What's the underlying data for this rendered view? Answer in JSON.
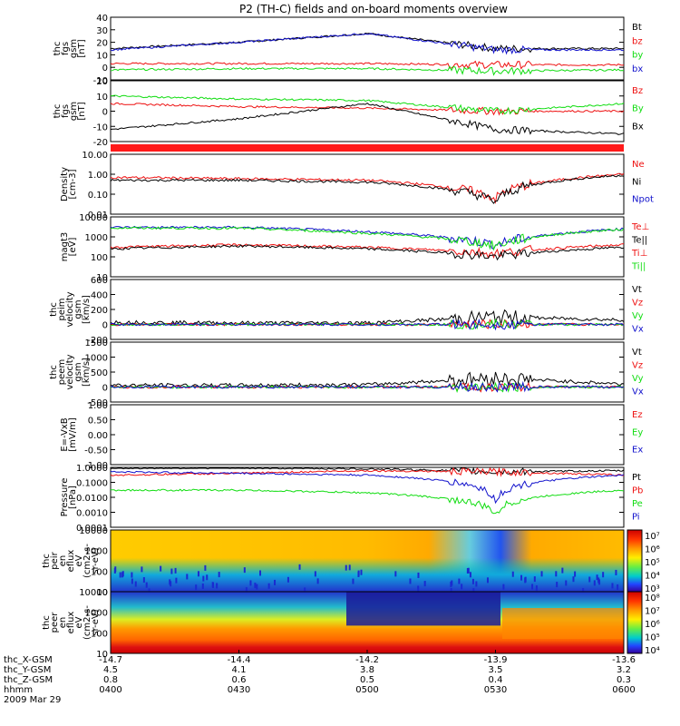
{
  "title": "P2 (TH-C) fields and on-board moments overview",
  "colors": {
    "black": "#000000",
    "red": "#ee1111",
    "green": "#11dd11",
    "blue": "#1111cc"
  },
  "panels": [
    {
      "id": "fgs-mag",
      "ylabel": [
        "thc",
        "fgs",
        "gsm",
        "[nT]"
      ],
      "ylim": [
        -10,
        40
      ],
      "ticks": [
        "40",
        "30",
        "20",
        "10",
        "0",
        "-10"
      ],
      "legend": [
        {
          "label": "Bt",
          "color": "black"
        },
        {
          "label": "bz",
          "color": "red"
        },
        {
          "label": "by",
          "color": "green"
        },
        {
          "label": "bx",
          "color": "blue"
        }
      ]
    },
    {
      "id": "fgs-comp",
      "ylabel": [
        "thc",
        "fgs",
        "gsm",
        "[nT]"
      ],
      "ylim": [
        -20,
        20
      ],
      "ticks": [
        "20",
        "10",
        "0",
        "-10",
        "-20"
      ],
      "legend": [
        {
          "label": "Bz",
          "color": "red"
        },
        {
          "label": "By",
          "color": "green"
        },
        {
          "label": "Bx",
          "color": "black"
        }
      ]
    },
    {
      "id": "density",
      "ylabel": [
        "Density",
        "[cm-3]"
      ],
      "ylim": [
        0.01,
        10
      ],
      "log": true,
      "ticks": [
        "10.00",
        "1.00",
        "0.10",
        "0.01"
      ],
      "legend": [
        {
          "label": "Ne",
          "color": "red"
        },
        {
          "label": "Ni",
          "color": "black"
        },
        {
          "label": "Npot",
          "color": "blue"
        }
      ]
    },
    {
      "id": "temp",
      "ylabel": [
        "magt3",
        "[eV]"
      ],
      "ylim": [
        10,
        10000
      ],
      "log": true,
      "ticks": [
        "10000",
        "1000",
        "100",
        "10"
      ],
      "legend": [
        {
          "label": "Te⊥",
          "color": "red"
        },
        {
          "label": "Te||",
          "color": "black"
        },
        {
          "label": "Ti⊥",
          "color": "red"
        },
        {
          "label": "Ti||",
          "color": "green"
        }
      ]
    },
    {
      "id": "vel-ion",
      "ylabel": [
        "thc",
        "peim",
        "velocity",
        "gsm",
        "[km/s]"
      ],
      "ylim": [
        -200,
        600
      ],
      "ticks": [
        "600",
        "400",
        "200",
        "0",
        "-200"
      ],
      "legend": [
        {
          "label": "Vt",
          "color": "black"
        },
        {
          "label": "Vz",
          "color": "red"
        },
        {
          "label": "Vy",
          "color": "green"
        },
        {
          "label": "Vx",
          "color": "blue"
        }
      ]
    },
    {
      "id": "vel-elec",
      "ylabel": [
        "thc",
        "peem",
        "velocity",
        "gsm",
        "[km/s]"
      ],
      "ylim": [
        -500,
        1500
      ],
      "ticks": [
        "1500",
        "1000",
        "500",
        "0",
        "-500"
      ],
      "legend": [
        {
          "label": "Vt",
          "color": "black"
        },
        {
          "label": "Vz",
          "color": "red"
        },
        {
          "label": "Vy",
          "color": "green"
        },
        {
          "label": "Vx",
          "color": "blue"
        }
      ]
    },
    {
      "id": "efield",
      "ylabel": [
        "E=-VxB",
        "[mV/m]"
      ],
      "ylim": [
        -1,
        1
      ],
      "ticks": [
        "1.00",
        "0.50",
        "0.00",
        "-0.50",
        "-1.00"
      ],
      "legend": [
        {
          "label": "Ez",
          "color": "red"
        },
        {
          "label": "Ey",
          "color": "green"
        },
        {
          "label": "Ex",
          "color": "blue"
        }
      ]
    },
    {
      "id": "pressure",
      "ylabel": [
        "Pressure",
        "[nPa]"
      ],
      "ylim": [
        0.0001,
        1
      ],
      "log": true,
      "ticks": [
        "1.0000",
        "0.1000",
        "0.0100",
        "0.0010",
        "0.0001"
      ],
      "legend": [
        {
          "label": "Pt",
          "color": "black"
        },
        {
          "label": "Pb",
          "color": "red"
        },
        {
          "label": "Pe",
          "color": "green"
        },
        {
          "label": "Pi",
          "color": "blue"
        }
      ]
    },
    {
      "id": "ion-spec",
      "ylabel": [
        "thc",
        "peir",
        "en",
        "eflux",
        "eV",
        "(cm2-s-",
        "sr-eV)"
      ],
      "ylim": [
        10,
        10000
      ],
      "log": true,
      "ticks": [
        "10000",
        "1000",
        "100",
        "10"
      ],
      "cbar": [
        "10⁷",
        "10⁶",
        "10⁵",
        "10⁴",
        "10³"
      ]
    },
    {
      "id": "elec-spec",
      "ylabel": [
        "thc",
        "peer",
        "en",
        "eflux",
        "eV",
        "(cm2-s-",
        "sr-eV)"
      ],
      "ylim": [
        10,
        10000
      ],
      "log": true,
      "ticks": [
        "10000",
        "1000",
        "100",
        "10"
      ],
      "cbar": [
        "10⁸",
        "10⁷",
        "10⁶",
        "10⁵",
        "10⁴"
      ]
    }
  ],
  "xaxis": {
    "labels": [
      "thc_X-GSM",
      "thc_Y-GSM",
      "thc_Z-GSM",
      "hhmm",
      "2009 Mar 29"
    ],
    "ticks": [
      {
        "x": "-14.7",
        "y": "4.5",
        "z": "0.8",
        "t": "0400"
      },
      {
        "x": "-14.4",
        "y": "4.1",
        "z": "0.6",
        "t": "0430"
      },
      {
        "x": "-14.2",
        "y": "3.8",
        "z": "0.5",
        "t": "0500"
      },
      {
        "x": "-13.9",
        "y": "3.5",
        "z": "0.4",
        "t": "0530"
      },
      {
        "x": "-13.6",
        "y": "3.2",
        "z": "0.3",
        "t": "0600"
      }
    ]
  },
  "chart_data": {
    "type": "line",
    "title": "P2 (TH-C) fields and on-board moments overview",
    "x": [
      "0400",
      "0430",
      "0500",
      "0530",
      "0600"
    ],
    "series": [
      {
        "panel": "fgs-mag",
        "name": "Bt",
        "values": [
          15,
          20,
          27,
          15,
          15
        ]
      },
      {
        "panel": "fgs-mag",
        "name": "bz",
        "values": [
          3,
          3,
          3,
          2,
          2
        ]
      },
      {
        "panel": "fgs-mag",
        "name": "by",
        "values": [
          -2,
          -1,
          -1,
          -3,
          -2
        ]
      },
      {
        "panel": "fgs-mag",
        "name": "bx",
        "values": [
          14,
          20,
          27,
          14,
          14
        ]
      },
      {
        "panel": "fgs-comp",
        "name": "Bz",
        "values": [
          5,
          3,
          2,
          0,
          0
        ]
      },
      {
        "panel": "fgs-comp",
        "name": "By",
        "values": [
          10,
          8,
          7,
          0,
          5
        ]
      },
      {
        "panel": "fgs-comp",
        "name": "Bx",
        "values": [
          -12,
          -5,
          5,
          -12,
          -15
        ]
      },
      {
        "panel": "density",
        "name": "Ne",
        "values": [
          0.7,
          0.6,
          0.5,
          0.06,
          1.0
        ]
      },
      {
        "panel": "density",
        "name": "Ni",
        "values": [
          0.5,
          0.5,
          0.4,
          0.04,
          0.9
        ]
      },
      {
        "panel": "temp",
        "name": "Ti⊥",
        "values": [
          3000,
          3000,
          1800,
          400,
          2500
        ]
      },
      {
        "panel": "temp",
        "name": "Ti||",
        "values": [
          2800,
          2700,
          1500,
          350,
          2400
        ]
      },
      {
        "panel": "temp",
        "name": "Te⊥",
        "values": [
          300,
          400,
          300,
          150,
          400
        ]
      },
      {
        "panel": "temp",
        "name": "Te||",
        "values": [
          250,
          350,
          250,
          100,
          300
        ]
      },
      {
        "panel": "vel-ion",
        "name": "Vt",
        "values": [
          30,
          20,
          20,
          100,
          60
        ]
      },
      {
        "panel": "vel-elec",
        "name": "Vt",
        "values": [
          60,
          60,
          80,
          300,
          100
        ]
      },
      {
        "panel": "pressure",
        "name": "Pt",
        "values": [
          0.9,
          0.9,
          0.8,
          0.5,
          0.6
        ]
      },
      {
        "panel": "pressure",
        "name": "Pb",
        "values": [
          0.3,
          0.4,
          0.6,
          0.5,
          0.3
        ]
      },
      {
        "panel": "pressure",
        "name": "Pe",
        "values": [
          0.03,
          0.03,
          0.02,
          0.0007,
          0.03
        ]
      },
      {
        "panel": "pressure",
        "name": "Pi",
        "values": [
          0.5,
          0.4,
          0.3,
          0.005,
          0.3
        ]
      }
    ]
  }
}
